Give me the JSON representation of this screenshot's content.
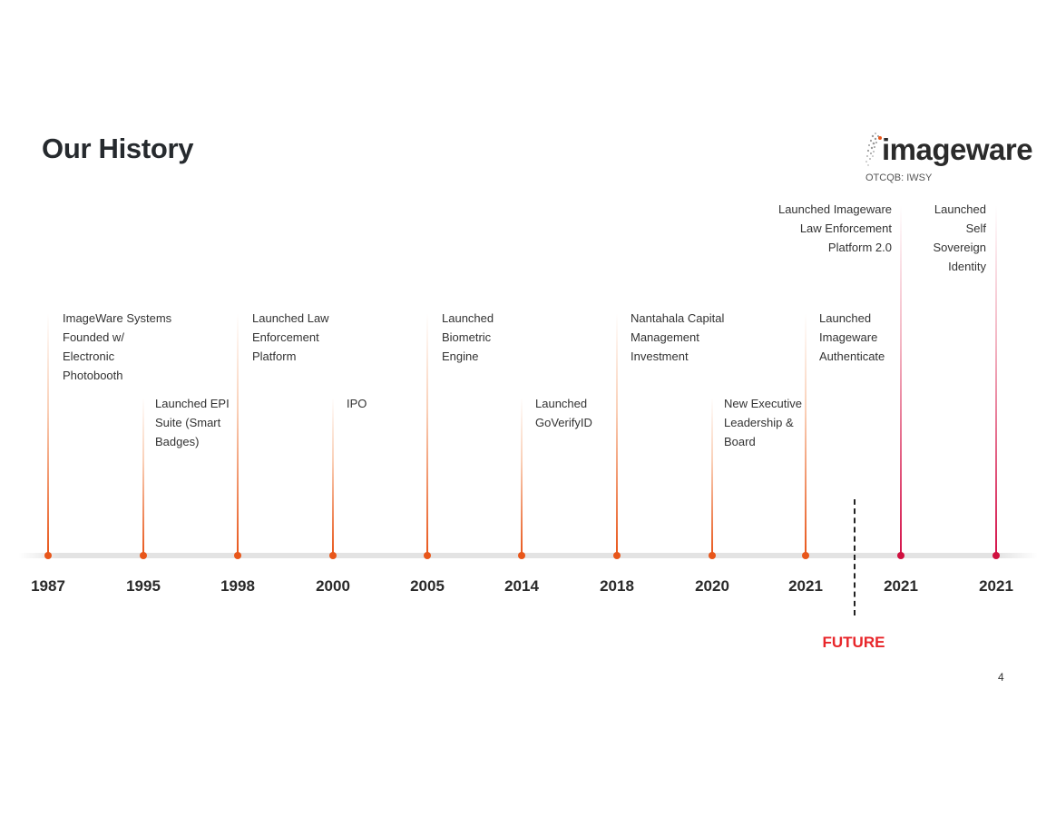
{
  "slide": {
    "title": "Our History",
    "page_number": "4"
  },
  "logo": {
    "wordmark": "imageware",
    "ticker": "OTCQB: IWSY"
  },
  "timeline": {
    "future_label": "FUTURE",
    "events": [
      {
        "year": "1987",
        "label": "ImageWare Systems\nFounded w/\nElectronic\nPhotobooth",
        "color": "#e8561a",
        "future": false
      },
      {
        "year": "1995",
        "label": "Launched EPI\nSuite (Smart\nBadges)",
        "color": "#e8561a",
        "future": false
      },
      {
        "year": "1998",
        "label": "Launched Law\nEnforcement\nPlatform",
        "color": "#e8561a",
        "future": false
      },
      {
        "year": "2000",
        "label": "IPO",
        "color": "#e8561a",
        "future": false
      },
      {
        "year": "2005",
        "label": "Launched\nBiometric\nEngine",
        "color": "#e8561a",
        "future": false
      },
      {
        "year": "2014",
        "label": "Launched\nGoVerifyID",
        "color": "#e8561a",
        "future": false
      },
      {
        "year": "2018",
        "label": "Nantahala Capital\nManagement\nInvestment",
        "color": "#e8561a",
        "future": false
      },
      {
        "year": "2020",
        "label": "New Executive\nLeadership &\nBoard",
        "color": "#e8561a",
        "future": false
      },
      {
        "year": "2021",
        "label": "Launched\nImageware\nAuthenticate",
        "color": "#e8561a",
        "future": false
      },
      {
        "year": "2021",
        "label": "Launched Imageware\nLaw Enforcement\nPlatform 2.0",
        "color": "#d0103f",
        "future": true
      },
      {
        "year": "2021",
        "label": "Launched\nSelf\nSovereign\nIdentity",
        "color": "#d0103f",
        "future": true
      }
    ]
  }
}
